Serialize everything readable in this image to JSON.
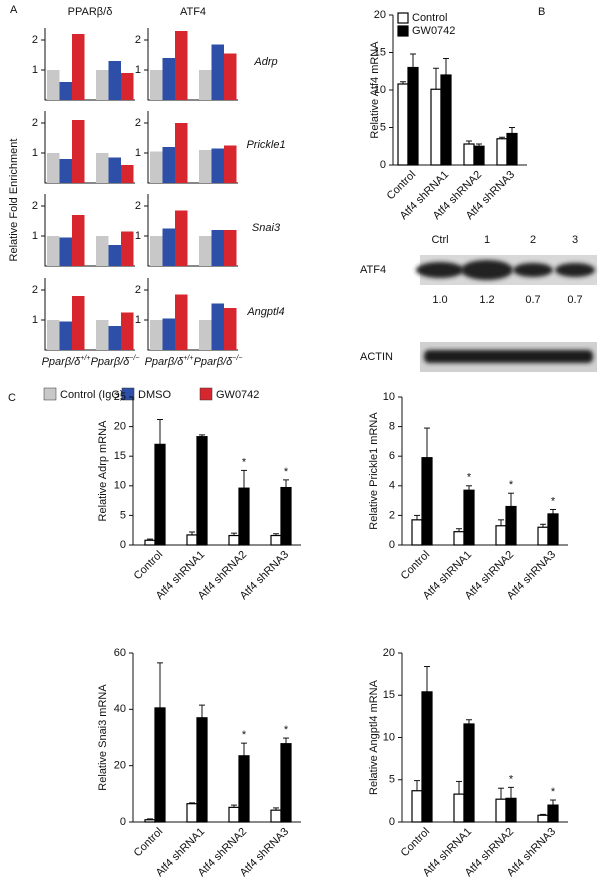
{
  "panel_labels": [
    "A",
    "B",
    "C"
  ],
  "chart_data": [
    {
      "type": "grouped-bar-grid",
      "y_label": "Relative Fold Enrichment",
      "columns": [
        "PPARβ/δ",
        "ATF4"
      ],
      "rows": [
        "Adrp",
        "Prickle1",
        "Snai3",
        "Angptl4"
      ],
      "categories": [
        {
          "base": "Pparβ/δ",
          "sup": "+/+"
        },
        {
          "base": "Pparβ/δ",
          "sup": "−/−"
        }
      ],
      "series": [
        {
          "name": "Control (IgG)",
          "color": "#c8c8c8"
        },
        {
          "name": "DMSO",
          "color": "#2e4fa8"
        },
        {
          "name": "GW0742",
          "color": "#d8262e"
        }
      ],
      "ylim": [
        0,
        2.4
      ],
      "yticks": [
        1,
        2
      ],
      "panels": [
        {
          "values": [
            [
              1.0,
              0.6,
              2.2
            ],
            [
              1.0,
              1.3,
              0.9
            ]
          ]
        },
        {
          "values": [
            [
              1.0,
              1.4,
              2.3
            ],
            [
              1.0,
              1.85,
              1.55
            ]
          ]
        },
        {
          "values": [
            [
              1.0,
              0.8,
              2.1
            ],
            [
              1.0,
              0.85,
              0.6
            ]
          ]
        },
        {
          "values": [
            [
              1.05,
              1.2,
              2.0
            ],
            [
              1.1,
              1.15,
              1.25
            ]
          ]
        },
        {
          "values": [
            [
              1.0,
              0.95,
              1.7
            ],
            [
              1.0,
              0.7,
              1.15
            ]
          ]
        },
        {
          "values": [
            [
              1.0,
              1.25,
              1.85
            ],
            [
              1.0,
              1.2,
              1.2
            ]
          ]
        },
        {
          "values": [
            [
              1.0,
              0.95,
              1.8
            ],
            [
              1.0,
              0.8,
              1.25
            ]
          ]
        },
        {
          "values": [
            [
              1.0,
              1.05,
              1.85
            ],
            [
              1.0,
              1.55,
              1.4
            ]
          ]
        }
      ]
    },
    {
      "type": "bar-error",
      "y_label": "Relative Atf4 mRNA",
      "categories": [
        "Control",
        "Atf4 shRNA1",
        "Atf4 shRNA2",
        "Atf4 shRNA3"
      ],
      "series": [
        {
          "name": "Control",
          "color": "#ffffff",
          "values": [
            10.8,
            10.1,
            2.8,
            3.5
          ],
          "errors": [
            0.3,
            2.8,
            0.4,
            0.2
          ]
        },
        {
          "name": "GW0742",
          "color": "#000000",
          "values": [
            13,
            12,
            2.5,
            4.2
          ],
          "errors": [
            1.8,
            2.2,
            0.3,
            0.8
          ]
        }
      ],
      "ylim": [
        0,
        20
      ],
      "yticks": [
        0,
        5,
        10,
        15,
        20
      ],
      "legend": "upper left"
    },
    {
      "type": "bar-error",
      "y_label": "Relative Adrp mRNA",
      "categories": [
        "Control",
        "Atf4 shRNA1",
        "Atf4 shRNA2",
        "Atf4 shRNA3"
      ],
      "series": [
        {
          "color": "#ffffff",
          "values": [
            0.8,
            1.7,
            1.6,
            1.6
          ],
          "errors": [
            0.2,
            0.5,
            0.4,
            0.3
          ]
        },
        {
          "color": "#000000",
          "values": [
            17,
            18.3,
            9.6,
            9.7
          ],
          "errors": [
            4.2,
            0.3,
            3,
            1.3
          ],
          "significance": [
            null,
            null,
            "*",
            "*"
          ]
        }
      ],
      "ylim": [
        0,
        25
      ],
      "yticks": [
        0,
        5,
        10,
        15,
        20,
        25
      ]
    },
    {
      "type": "bar-error",
      "y_label": "Relative Prickle1 mRNA",
      "categories": [
        "Control",
        "Atf4 shRNA1",
        "Atf4 shRNA2",
        "Atf4 shRNA3"
      ],
      "series": [
        {
          "color": "#ffffff",
          "values": [
            1.7,
            0.9,
            1.3,
            1.2
          ],
          "errors": [
            0.3,
            0.2,
            0.4,
            0.2
          ]
        },
        {
          "color": "#000000",
          "values": [
            5.9,
            3.7,
            2.6,
            2.1
          ],
          "errors": [
            2,
            0.3,
            0.9,
            0.3
          ],
          "significance": [
            null,
            "*",
            "*",
            "*"
          ]
        }
      ],
      "ylim": [
        0,
        10
      ],
      "yticks": [
        0,
        2,
        4,
        6,
        8,
        10
      ]
    },
    {
      "type": "bar-error",
      "y_label": "Relative Snai3 mRNA",
      "categories": [
        "Control",
        "Atf4 shRNA1",
        "Atf4 shRNA2",
        "Atf4 shRNA3"
      ],
      "series": [
        {
          "color": "#ffffff",
          "values": [
            0.8,
            6.5,
            5.2,
            4.2
          ],
          "errors": [
            0.3,
            0.3,
            0.8,
            0.8
          ]
        },
        {
          "color": "#000000",
          "values": [
            40.5,
            37,
            23.5,
            27.8
          ],
          "errors": [
            16,
            4.5,
            4.5,
            2
          ],
          "significance": [
            null,
            null,
            "*",
            "*"
          ]
        }
      ],
      "ylim": [
        0,
        60
      ],
      "yticks": [
        0,
        20,
        40,
        60
      ]
    },
    {
      "type": "bar-error",
      "y_label": "Relative Angptl4 mRNA",
      "categories": [
        "Control",
        "Atf4 shRNA1",
        "Atf4 shRNA2",
        "Atf4 shRNA3"
      ],
      "series": [
        {
          "color": "#ffffff",
          "values": [
            3.7,
            3.3,
            2.7,
            0.8
          ],
          "errors": [
            1.2,
            1.5,
            1.3,
            0.1
          ]
        },
        {
          "color": "#000000",
          "values": [
            15.4,
            11.6,
            2.8,
            2
          ],
          "errors": [
            3,
            0.5,
            1.3,
            0.6
          ],
          "significance": [
            null,
            null,
            "*",
            "*"
          ]
        }
      ],
      "ylim": [
        0,
        20
      ],
      "yticks": [
        0,
        5,
        10,
        15,
        20
      ]
    }
  ],
  "blot": {
    "lanes": [
      "Ctrl",
      "1",
      "2",
      "3"
    ],
    "rows": [
      {
        "label": "ATF4",
        "quantification": [
          "1.0",
          "1.2",
          "0.7",
          "0.7"
        ]
      },
      {
        "label": "ACTIN"
      }
    ]
  }
}
